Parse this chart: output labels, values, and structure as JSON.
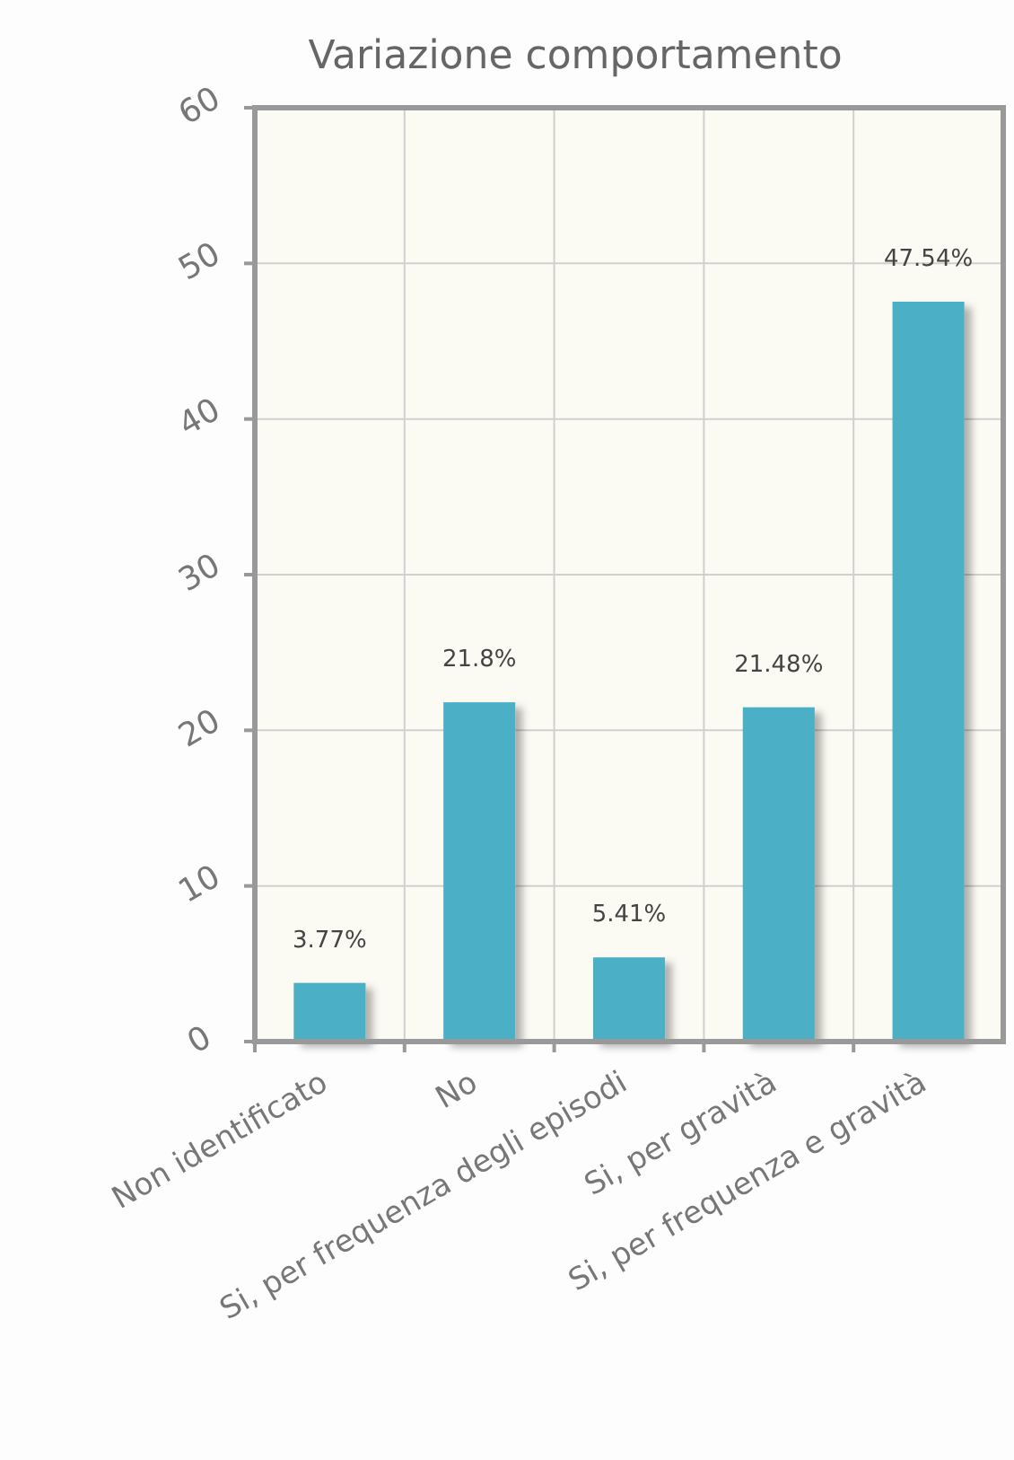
{
  "chart_data": {
    "type": "bar",
    "title": "Variazione comportamento",
    "categories": [
      "Non identificato",
      "No",
      "Si, per frequenza degli episodi",
      "Si, per gravità",
      "Si, per frequenza e gravità"
    ],
    "values": [
      3.77,
      21.8,
      5.41,
      21.48,
      47.54
    ],
    "value_labels": [
      "3.77%",
      "21.8%",
      "5.41%",
      "21.48%",
      "47.54%"
    ],
    "color": "#4bafc6",
    "ylim": [
      0,
      60
    ],
    "yticks": [
      0,
      10,
      20,
      30,
      40,
      50,
      60
    ],
    "grid": true
  }
}
